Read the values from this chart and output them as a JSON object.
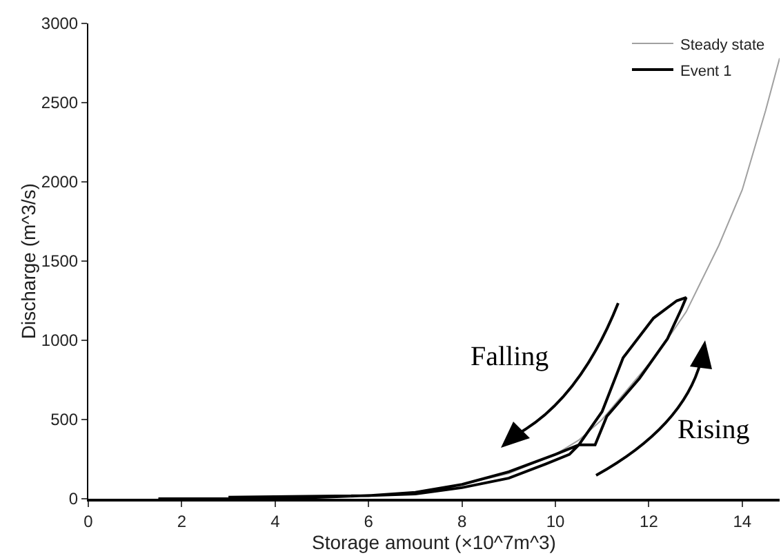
{
  "chart_data": {
    "type": "line",
    "xlabel": "Storage amount (×10^7m^3)",
    "ylabel": "Discharge (m^3/s)",
    "xlim": [
      0,
      14.8
    ],
    "xticks": [
      0,
      2,
      4,
      6,
      8,
      10,
      12,
      14
    ],
    "ylim": [
      0,
      3000
    ],
    "yticks": [
      0,
      500,
      1000,
      1500,
      2000,
      2500,
      3000
    ],
    "grid": false,
    "legend": "top right",
    "marker": "none",
    "line_style": "solid",
    "annotations": [
      "Falling",
      "Rising"
    ],
    "series": [
      {
        "name": "Steady state",
        "color": "#a0a0a0",
        "x": [
          1.5,
          4,
          6,
          7,
          8,
          9,
          10,
          10.5,
          11,
          12,
          12.5,
          12.8,
          13.5,
          14,
          14.5,
          14.8
        ],
        "values": [
          0,
          0,
          20,
          40,
          90,
          160,
          280,
          370,
          500,
          850,
          1050,
          1180,
          1600,
          1950,
          2450,
          2780
        ]
      },
      {
        "name": "Event 1",
        "color": "#000000",
        "x": [
          1.5,
          4,
          7,
          8,
          9,
          9.8,
          10.3,
          10.5,
          10.85,
          11.1,
          11.8,
          12.4,
          12.7,
          12.8,
          12.6,
          12.1,
          11.45,
          11,
          10.5,
          10,
          9,
          8,
          7,
          6,
          3
        ],
        "values": [
          0,
          0,
          30,
          70,
          130,
          220,
          280,
          340,
          340,
          520,
          760,
          1010,
          1200,
          1270,
          1250,
          1140,
          890,
          550,
          340,
          280,
          170,
          90,
          40,
          20,
          10
        ]
      }
    ]
  }
}
